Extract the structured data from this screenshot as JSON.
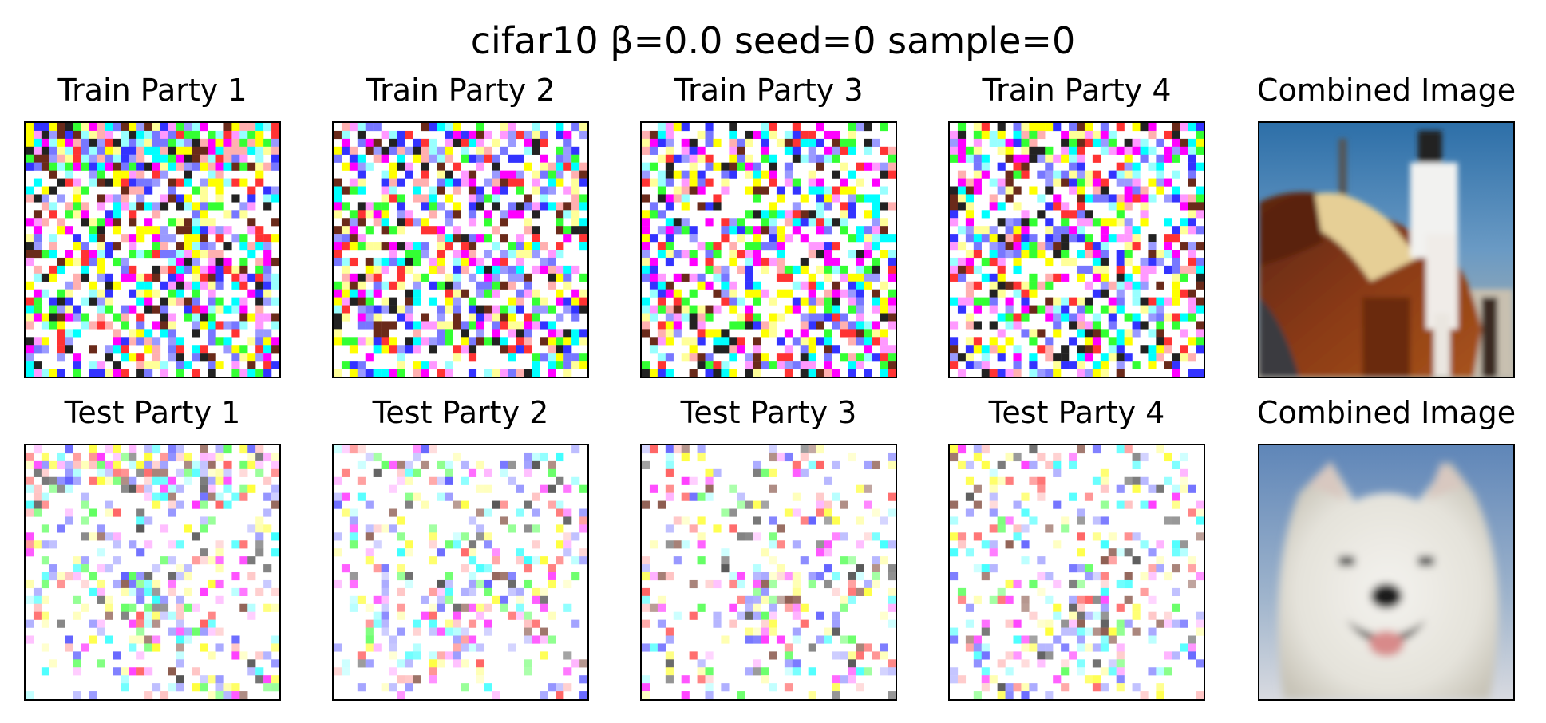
{
  "figure": {
    "title": "cifar10 β=0.0 seed=0 sample=0",
    "rows": [
      {
        "panels": [
          {
            "title": "Train Party 1",
            "kind": "party",
            "image": "train-party-1-image",
            "density": 0.6,
            "fade": 0.0,
            "band": 0.38
          },
          {
            "title": "Train Party 2",
            "kind": "party",
            "image": "train-party-2-image",
            "density": 0.62,
            "fade": 0.0,
            "band": 0.0
          },
          {
            "title": "Train Party 3",
            "kind": "party",
            "image": "train-party-3-image",
            "density": 0.6,
            "fade": 0.0,
            "band": 0.0
          },
          {
            "title": "Train Party 4",
            "kind": "party",
            "image": "train-party-4-image",
            "density": 0.6,
            "fade": 0.0,
            "band": 0.0
          },
          {
            "title": "Combined Image",
            "kind": "combined",
            "image": "horse-and-rider-photo"
          }
        ]
      },
      {
        "panels": [
          {
            "title": "Test Party 1",
            "kind": "party",
            "image": "test-party-1-image",
            "density": 0.35,
            "fade": 0.55,
            "band": 0.3
          },
          {
            "title": "Test Party 2",
            "kind": "party",
            "image": "test-party-2-image",
            "density": 0.3,
            "fade": 0.6,
            "band": 0.0
          },
          {
            "title": "Test Party 3",
            "kind": "party",
            "image": "test-party-3-image",
            "density": 0.3,
            "fade": 0.6,
            "band": 0.0
          },
          {
            "title": "Test Party 4",
            "kind": "party",
            "image": "test-party-4-image",
            "density": 0.3,
            "fade": 0.6,
            "band": 0.0
          },
          {
            "title": "Combined Image",
            "kind": "combined",
            "image": "white-dog-photo"
          }
        ]
      }
    ]
  },
  "colors": {
    "noise_palette": [
      "#ff00ff",
      "#00ffff",
      "#ffff00",
      "#ff3333",
      "#3333ff",
      "#33ff33",
      "#6a2a1a",
      "#ff99ff",
      "#99ffff",
      "#ffff99",
      "#7777ff",
      "#222222",
      "#9a9aff",
      "#ffb0b0"
    ],
    "sky": "#2d6fa8",
    "horse": "#7a3012",
    "dog": "#e8e6e0",
    "dog_background": "#6f93c0"
  }
}
